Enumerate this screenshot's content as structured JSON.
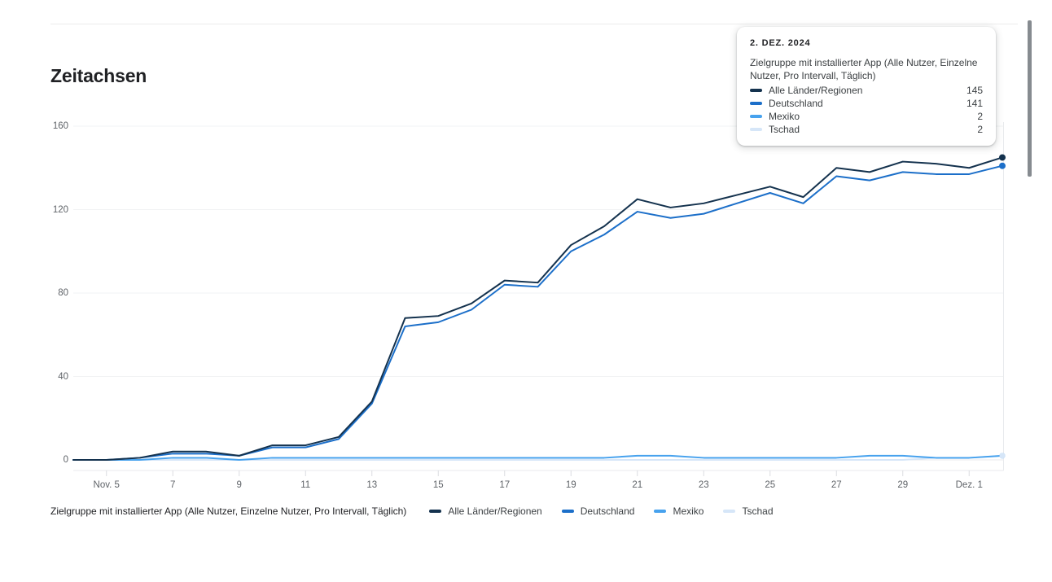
{
  "header": {
    "title": "Zeitachsen"
  },
  "tooltip": {
    "date": "2. DEZ. 2024",
    "metric": "Zielgruppe mit installierter App (Alle Nutzer, Einzelne Nutzer, Pro Intervall, Täglich)",
    "rows": [
      {
        "label": "Alle Länder/Regionen",
        "value": "145"
      },
      {
        "label": "Deutschland",
        "value": "141"
      },
      {
        "label": "Mexiko",
        "value": "2"
      },
      {
        "label": "Tschad",
        "value": "2"
      }
    ]
  },
  "legend": {
    "metric_label": "Zielgruppe mit installierter App (Alle Nutzer, Einzelne Nutzer, Pro Intervall, Täglich)",
    "items": [
      "Alle Länder/Regionen",
      "Deutschland",
      "Mexiko",
      "Tschad"
    ]
  },
  "chart_data": {
    "type": "line",
    "title": "Zeitachsen",
    "grid": "horizontal",
    "legend_position": "bottom",
    "ylim": [
      0,
      160
    ],
    "y_ticks": [
      0,
      40,
      80,
      120,
      160
    ],
    "x": [
      "4. Nov.",
      "5. Nov.",
      "6. Nov.",
      "7. Nov.",
      "8. Nov.",
      "9. Nov.",
      "10. Nov.",
      "11. Nov.",
      "12. Nov.",
      "13. Nov.",
      "14. Nov.",
      "15. Nov.",
      "16. Nov.",
      "17. Nov.",
      "18. Nov.",
      "19. Nov.",
      "20. Nov.",
      "21. Nov.",
      "22. Nov.",
      "23. Nov.",
      "24. Nov.",
      "25. Nov.",
      "26. Nov.",
      "27. Nov.",
      "28. Nov.",
      "29. Nov.",
      "30. Nov.",
      "1. Dez.",
      "2. Dez."
    ],
    "x_tick_labels": [
      {
        "i": 1,
        "label": "Nov. 5"
      },
      {
        "i": 3,
        "label": "7"
      },
      {
        "i": 5,
        "label": "9"
      },
      {
        "i": 7,
        "label": "11"
      },
      {
        "i": 9,
        "label": "13"
      },
      {
        "i": 11,
        "label": "15"
      },
      {
        "i": 13,
        "label": "17"
      },
      {
        "i": 15,
        "label": "19"
      },
      {
        "i": 17,
        "label": "21"
      },
      {
        "i": 19,
        "label": "23"
      },
      {
        "i": 21,
        "label": "25"
      },
      {
        "i": 23,
        "label": "27"
      },
      {
        "i": 25,
        "label": "29"
      },
      {
        "i": 27,
        "label": "Dez. 1"
      }
    ],
    "series": [
      {
        "name": "Alle Länder/Regionen",
        "color": "#14324e",
        "values": [
          0,
          0,
          1,
          4,
          4,
          2,
          7,
          7,
          11,
          28,
          68,
          69,
          75,
          86,
          85,
          103,
          112,
          125,
          121,
          123,
          127,
          131,
          126,
          140,
          138,
          143,
          142,
          140,
          145
        ]
      },
      {
        "name": "Deutschland",
        "color": "#1c6fc9",
        "values": [
          0,
          0,
          1,
          3,
          3,
          2,
          6,
          6,
          10,
          27,
          64,
          66,
          72,
          84,
          83,
          100,
          108,
          119,
          116,
          118,
          123,
          128,
          123,
          136,
          134,
          138,
          137,
          137,
          141
        ]
      },
      {
        "name": "Mexiko",
        "color": "#47a2ee",
        "values": [
          0,
          0,
          0,
          1,
          1,
          0,
          1,
          1,
          1,
          1,
          1,
          1,
          1,
          1,
          1,
          1,
          1,
          2,
          2,
          1,
          1,
          1,
          1,
          1,
          2,
          2,
          1,
          1,
          2
        ]
      },
      {
        "name": "Tschad",
        "color": "#d6e6f8",
        "values": [
          0,
          0,
          0,
          0,
          0,
          0,
          0,
          0,
          0,
          0,
          0,
          0,
          0,
          0,
          0,
          0,
          0,
          0,
          0,
          0,
          0,
          0,
          0,
          0,
          0,
          0,
          1,
          1,
          2
        ]
      }
    ]
  },
  "colors": {
    "gridline": "#f1f3f4",
    "axis_line": "#e8eaed",
    "tick": "#dadce0",
    "axis_text": "#5f6368",
    "scrollbar": "#868b90"
  }
}
